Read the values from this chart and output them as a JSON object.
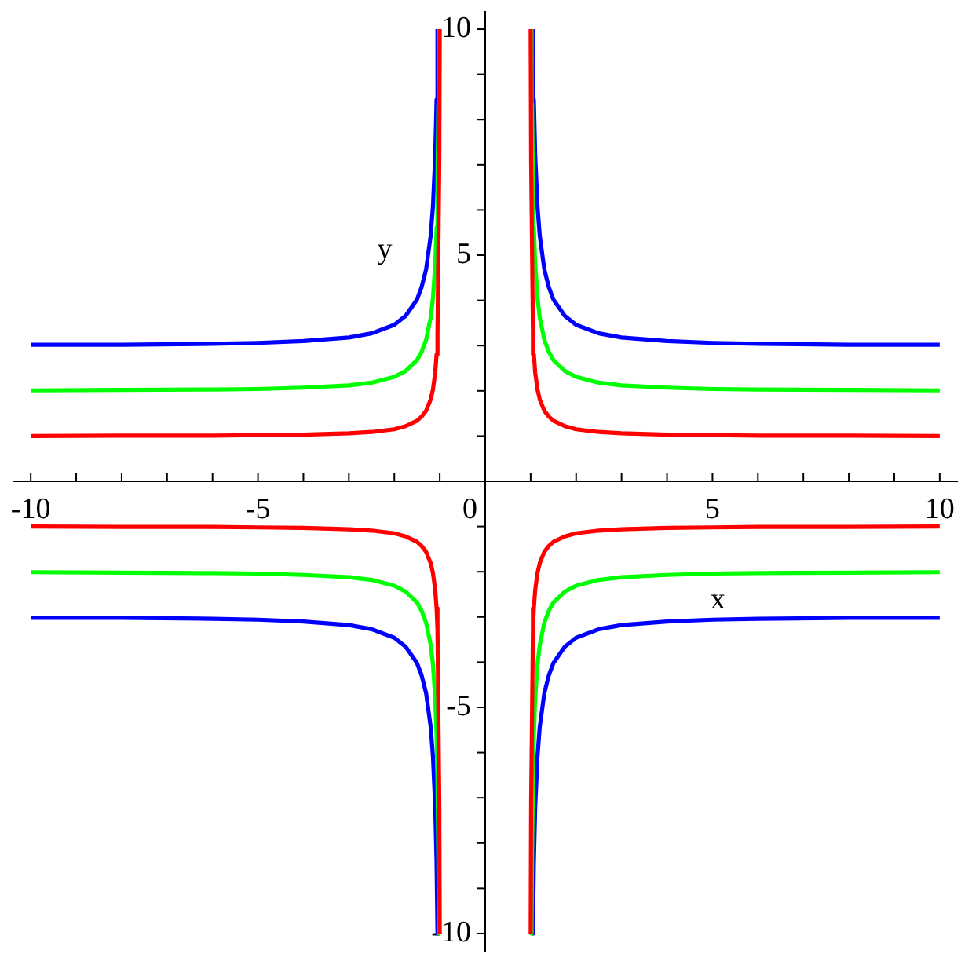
{
  "chart_data": {
    "type": "line",
    "xlabel": "x",
    "ylabel": "y",
    "xlim": [
      -10.4,
      10.4
    ],
    "ylim": [
      -10.4,
      10.4
    ],
    "xticks": [
      -10,
      {
        "value": -9,
        "label": null
      },
      {
        "value": -8,
        "label": null
      },
      {
        "value": -7,
        "label": null
      },
      {
        "value": -6,
        "label": null
      },
      -5,
      {
        "value": -4,
        "label": null
      },
      {
        "value": -3,
        "label": null
      },
      {
        "value": -2,
        "label": null
      },
      {
        "value": -1,
        "label": null
      },
      0,
      {
        "value": 1,
        "label": null
      },
      {
        "value": 2,
        "label": null
      },
      {
        "value": 3,
        "label": null
      },
      {
        "value": 4,
        "label": null
      },
      5,
      {
        "value": 6,
        "label": null
      },
      {
        "value": 7,
        "label": null
      },
      {
        "value": 8,
        "label": null
      },
      {
        "value": 9,
        "label": null
      },
      10
    ],
    "yticks": [
      -10,
      {
        "value": -9,
        "label": null
      },
      {
        "value": -8,
        "label": null
      },
      {
        "value": -7,
        "label": null
      },
      {
        "value": -6,
        "label": null
      },
      -5,
      {
        "value": -4,
        "label": null
      },
      {
        "value": -3,
        "label": null
      },
      {
        "value": -2,
        "label": null
      },
      {
        "value": -1,
        "label": null
      },
      {
        "value": 1,
        "label": null
      },
      {
        "value": 2,
        "label": null
      },
      {
        "value": 3,
        "label": null
      },
      {
        "value": 4,
        "label": null
      },
      5,
      {
        "value": 6,
        "label": null
      },
      {
        "value": 7,
        "label": null
      },
      {
        "value": 8,
        "label": null
      },
      {
        "value": 9,
        "label": null
      },
      10
    ],
    "series": [
      {
        "color": "#ff0000",
        "x": [
          -10,
          -8,
          -6,
          -5,
          -4,
          -3,
          -2.5,
          -2,
          -1.75,
          -1.5,
          -1.4,
          -1.3,
          -1.2,
          -1.15,
          -1.1,
          -1.07,
          -1.05,
          -1.01,
          -1
        ],
        "values": [
          1,
          1.01,
          1.01,
          1.02,
          1.03,
          1.06,
          1.09,
          1.15,
          1.22,
          1.34,
          1.43,
          1.56,
          1.81,
          2.03,
          2.4,
          2.81,
          3.28,
          7.12,
          10
        ]
      },
      {
        "color": "#00ff00",
        "x": [
          -10,
          -8,
          -6,
          -5,
          -4,
          -3,
          -2.5,
          -2,
          -1.75,
          -1.5,
          -1.4,
          -1.3,
          -1.2,
          -1.15,
          -1.1,
          -1.07,
          -1.05,
          -1.03,
          -1.02
        ],
        "values": [
          2.01,
          2.02,
          2.03,
          2.04,
          2.07,
          2.12,
          2.18,
          2.31,
          2.44,
          2.68,
          2.86,
          3.13,
          3.62,
          4.05,
          4.8,
          5.62,
          6.56,
          8.34,
          10
        ]
      },
      {
        "color": "#0000ff",
        "x": [
          -10,
          -8,
          -6,
          -5,
          -4,
          -3,
          -2.5,
          -2,
          -1.75,
          -1.5,
          -1.4,
          -1.3,
          -1.2,
          -1.15,
          -1.1,
          -1.07,
          -1.05
        ],
        "values": [
          3.02,
          3.02,
          3.04,
          3.06,
          3.1,
          3.18,
          3.27,
          3.46,
          3.66,
          4.02,
          4.29,
          4.69,
          5.43,
          6.08,
          7.2,
          8.44,
          10
        ]
      },
      {
        "color": "#ff0000",
        "x": [
          10,
          8,
          6,
          5,
          4,
          3,
          2.5,
          2,
          1.75,
          1.5,
          1.4,
          1.3,
          1.2,
          1.15,
          1.1,
          1.07,
          1.05,
          1.01,
          1
        ],
        "values": [
          1,
          1.01,
          1.01,
          1.02,
          1.03,
          1.06,
          1.09,
          1.15,
          1.22,
          1.34,
          1.43,
          1.56,
          1.81,
          2.03,
          2.4,
          2.81,
          3.28,
          7.12,
          10
        ]
      },
      {
        "color": "#00ff00",
        "x": [
          10,
          8,
          6,
          5,
          4,
          3,
          2.5,
          2,
          1.75,
          1.5,
          1.4,
          1.3,
          1.2,
          1.15,
          1.1,
          1.07,
          1.05,
          1.03,
          1.02
        ],
        "values": [
          2.01,
          2.02,
          2.03,
          2.04,
          2.07,
          2.12,
          2.18,
          2.31,
          2.44,
          2.68,
          2.86,
          3.13,
          3.62,
          4.05,
          4.8,
          5.62,
          6.56,
          8.34,
          10
        ]
      },
      {
        "color": "#0000ff",
        "x": [
          10,
          8,
          6,
          5,
          4,
          3,
          2.5,
          2,
          1.75,
          1.5,
          1.4,
          1.3,
          1.2,
          1.15,
          1.1,
          1.07,
          1.05
        ],
        "values": [
          3.02,
          3.02,
          3.04,
          3.06,
          3.1,
          3.18,
          3.27,
          3.46,
          3.66,
          4.02,
          4.29,
          4.69,
          5.43,
          6.08,
          7.2,
          8.44,
          10
        ]
      },
      {
        "color": "#ff0000",
        "x": [
          -10,
          -8,
          -6,
          -5,
          -4,
          -3,
          -2.5,
          -2,
          -1.75,
          -1.5,
          -1.4,
          -1.3,
          -1.2,
          -1.15,
          -1.1,
          -1.07,
          -1.05,
          -1.01,
          -1
        ],
        "values": [
          -1,
          -1.01,
          -1.01,
          -1.02,
          -1.03,
          -1.06,
          -1.09,
          -1.15,
          -1.22,
          -1.34,
          -1.43,
          -1.56,
          -1.81,
          -2.03,
          -2.4,
          -2.81,
          -3.28,
          -7.12,
          -10
        ]
      },
      {
        "color": "#00ff00",
        "x": [
          -10,
          -8,
          -6,
          -5,
          -4,
          -3,
          -2.5,
          -2,
          -1.75,
          -1.5,
          -1.4,
          -1.3,
          -1.2,
          -1.15,
          -1.1,
          -1.07,
          -1.05,
          -1.03,
          -1.02
        ],
        "values": [
          -2.01,
          -2.02,
          -2.03,
          -2.04,
          -2.07,
          -2.12,
          -2.18,
          -2.31,
          -2.44,
          -2.68,
          -2.86,
          -3.13,
          -3.62,
          -4.05,
          -4.8,
          -5.62,
          -6.56,
          -8.34,
          -10
        ]
      },
      {
        "color": "#0000ff",
        "x": [
          -10,
          -8,
          -6,
          -5,
          -4,
          -3,
          -2.5,
          -2,
          -1.75,
          -1.5,
          -1.4,
          -1.3,
          -1.2,
          -1.15,
          -1.1,
          -1.07,
          -1.05
        ],
        "values": [
          -3.02,
          -3.02,
          -3.04,
          -3.06,
          -3.1,
          -3.18,
          -3.27,
          -3.46,
          -3.66,
          -4.02,
          -4.29,
          -4.69,
          -5.43,
          -6.08,
          -7.2,
          -8.44,
          -10
        ]
      },
      {
        "color": "#ff0000",
        "x": [
          10,
          8,
          6,
          5,
          4,
          3,
          2.5,
          2,
          1.75,
          1.5,
          1.4,
          1.3,
          1.2,
          1.15,
          1.1,
          1.07,
          1.05,
          1.01,
          1
        ],
        "values": [
          -1,
          -1.01,
          -1.01,
          -1.02,
          -1.03,
          -1.06,
          -1.09,
          -1.15,
          -1.22,
          -1.34,
          -1.43,
          -1.56,
          -1.81,
          -2.03,
          -2.4,
          -2.81,
          -3.28,
          -7.12,
          -10
        ]
      },
      {
        "color": "#00ff00",
        "x": [
          10,
          8,
          6,
          5,
          4,
          3,
          2.5,
          2,
          1.75,
          1.5,
          1.4,
          1.3,
          1.2,
          1.15,
          1.1,
          1.07,
          1.05,
          1.03,
          1.02
        ],
        "values": [
          -2.01,
          -2.02,
          -2.03,
          -2.04,
          -2.07,
          -2.12,
          -2.18,
          -2.31,
          -2.44,
          -2.68,
          -2.86,
          -3.13,
          -3.62,
          -4.05,
          -4.8,
          -5.62,
          -6.56,
          -8.34,
          -10
        ]
      },
      {
        "color": "#0000ff",
        "x": [
          10,
          8,
          6,
          5,
          4,
          3,
          2.5,
          2,
          1.75,
          1.5,
          1.4,
          1.3,
          1.2,
          1.15,
          1.1,
          1.07,
          1.05
        ],
        "values": [
          -3.02,
          -3.02,
          -3.04,
          -3.06,
          -3.1,
          -3.18,
          -3.27,
          -3.46,
          -3.66,
          -4.02,
          -4.29,
          -4.69,
          -5.43,
          -6.08,
          -7.2,
          -8.44,
          -10
        ]
      }
    ]
  }
}
